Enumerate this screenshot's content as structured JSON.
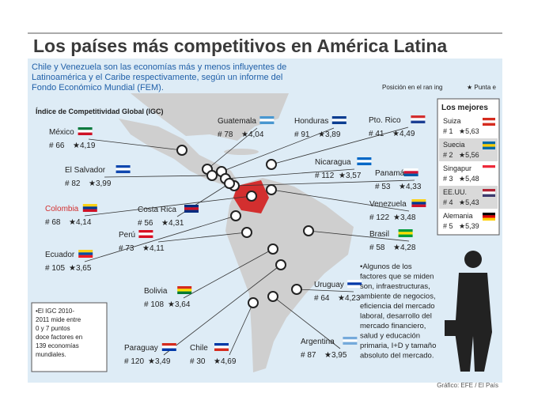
{
  "header": {
    "title": "Los países más competitivos en América Latina",
    "subtitle": [
      "Chile y Venezuela son las economías más y menos influyentes de",
      "Latinoamérica y el Caribe respectivamente, según un informe del",
      "Fondo Económico Mundial (FEM)."
    ]
  },
  "legend": {
    "index": "Índice de Competitividad Global (IGC)",
    "position": "Posición en el ran ing",
    "score": "★ Punta e"
  },
  "countries": [
    {
      "name": "México",
      "rank": "# 66",
      "score": "★4,19"
    },
    {
      "name": "Guatemala",
      "rank": "# 78",
      "score": "★4,04"
    },
    {
      "name": "Honduras",
      "rank": "# 91",
      "score": "★3,89"
    },
    {
      "name": "Pto. Rico",
      "rank": "# 41",
      "score": "★4,49"
    },
    {
      "name": "El Salvador",
      "rank": "# 82",
      "score": "★3,99"
    },
    {
      "name": "Nicaragua",
      "rank": "# 112",
      "score": "★3,57"
    },
    {
      "name": "Panamá",
      "rank": "# 53",
      "score": "★4,33"
    },
    {
      "name": "Colombia",
      "rank": "# 68",
      "score": "★4,14"
    },
    {
      "name": "Costa Rica",
      "rank": "# 56",
      "score": "★4,31"
    },
    {
      "name": "Venezuela",
      "rank": "# 122",
      "score": "★3,48"
    },
    {
      "name": "Perú",
      "rank": "# 73",
      "score": "★4,11"
    },
    {
      "name": "Ecuador",
      "rank": "# 105",
      "score": "★3,65"
    },
    {
      "name": "Brasil",
      "rank": "# 58",
      "score": "★4,28"
    },
    {
      "name": "Bolivia",
      "rank": "# 108",
      "score": "★3,64"
    },
    {
      "name": "Uruguay",
      "rank": "# 64",
      "score": "★4,23"
    },
    {
      "name": "Paraguay",
      "rank": "# 120",
      "score": "★3,49"
    },
    {
      "name": "Chile",
      "rank": "# 30",
      "score": "★4,69"
    },
    {
      "name": "Argentina",
      "rank": "# 87",
      "score": "★3,95"
    }
  ],
  "best": {
    "title": "Los mejores",
    "items": [
      {
        "name": "Suiza",
        "rank": "# 1",
        "score": "★5,63"
      },
      {
        "name": "Suecia",
        "rank": "# 2",
        "score": "★5,56"
      },
      {
        "name": "Singapur",
        "rank": "# 3",
        "score": "★5,48"
      },
      {
        "name": "EE.UU.",
        "rank": "# 4",
        "score": "★5,43"
      },
      {
        "name": "Alemania",
        "rank": "# 5",
        "score": "★5,39"
      }
    ]
  },
  "note_left": [
    "•El IGC 2010-",
    "2011 mide entre",
    "0 y 7 puntos",
    "doce factores en",
    "139 economías",
    "mundiales."
  ],
  "note_right": [
    "•Algunos de los",
    "factores que se miden",
    "son, infraestructuras,",
    "ambiente de negocios,",
    "eficiencia del mercado",
    "laboral, desarrollo del",
    "mercado financiero,",
    "salud y educación",
    "primaria, I+D y tamaño",
    "absoluto del mercado."
  ],
  "credit": "Gráfico: EFE / El País"
}
